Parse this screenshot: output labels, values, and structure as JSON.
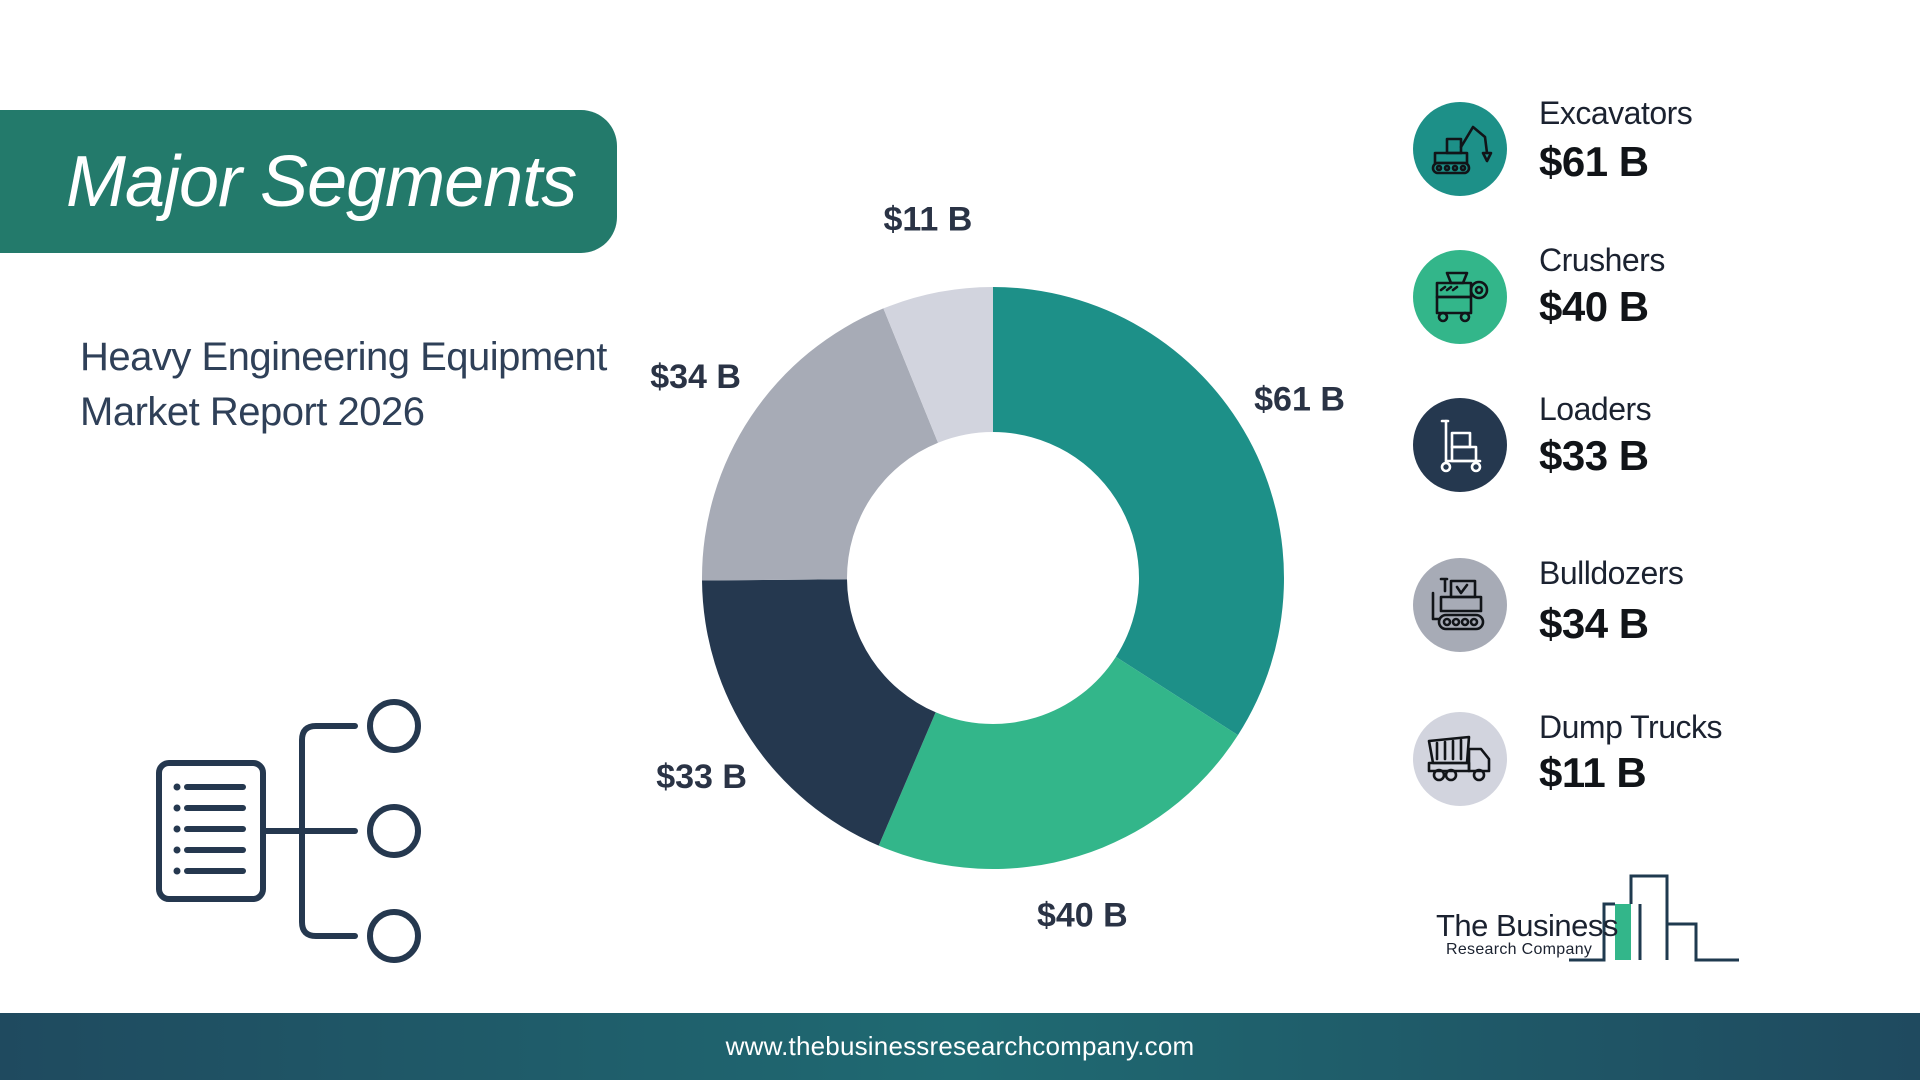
{
  "header": {
    "title": "Major Segments"
  },
  "subtitle": {
    "line1": "Heavy Engineering Equipment",
    "line2": "Market Report 2026"
  },
  "chart_data": {
    "type": "pie",
    "donut": true,
    "title": "",
    "unit": "$ B",
    "categories": [
      "Excavators",
      "Crushers",
      "Loaders",
      "Bulldozers",
      "Dump Trucks"
    ],
    "values": [
      61,
      40,
      33,
      34,
      11
    ],
    "labels": [
      "$61 B",
      "$40 B",
      "$33 B",
      "$34 B",
      "$11 B"
    ],
    "colors": [
      "#1d9088",
      "#33b68a",
      "#25384f",
      "#a7abb6",
      "#d2d4de"
    ]
  },
  "legend": [
    {
      "name": "Excavators",
      "value": "$61 B",
      "color": "#1d9088",
      "icon": "excavator-icon"
    },
    {
      "name": "Crushers",
      "value": "$40 B",
      "color": "#33b68a",
      "icon": "crusher-icon"
    },
    {
      "name": "Loaders",
      "value": "$33 B",
      "color": "#25384f",
      "icon": "loader-icon"
    },
    {
      "name": "Bulldozers",
      "value": "$34 B",
      "color": "#a7abb6",
      "icon": "bulldozer-icon"
    },
    {
      "name": "Dump Trucks",
      "value": "$11 B",
      "color": "#d2d4de",
      "icon": "dump-truck-icon"
    }
  ],
  "logo": {
    "line1": "The Business",
    "line2": "Research Company"
  },
  "footer": {
    "url": "www.thebusinessresearchcompany.com"
  }
}
